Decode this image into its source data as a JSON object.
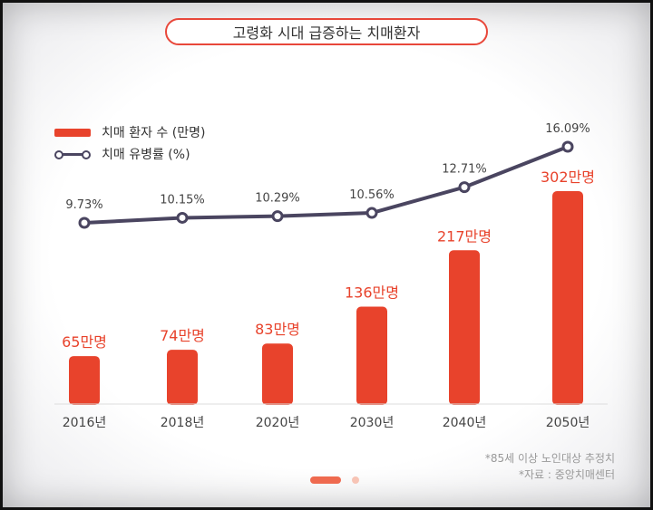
{
  "title": "고령화 시대 급증하는 치매환자",
  "legend": {
    "bar_label": "치매 환자 수 (만명)",
    "line_label": "치매 유병률 (%)"
  },
  "notes": {
    "line1": "*85세 이상 노인대상 추정치",
    "line2": "*자료 : 중앙치매센터"
  },
  "colors": {
    "bar": "#e8432c",
    "line": "#4a4560",
    "accent": "#e8473a"
  },
  "chart_data": {
    "type": "bar",
    "categories": [
      "2016년",
      "2018년",
      "2020년",
      "2030년",
      "2040년",
      "2050년"
    ],
    "series": [
      {
        "name": "치매 환자 수 (만명)",
        "type": "bar",
        "values": [
          65,
          74,
          83,
          136,
          217,
          302
        ],
        "labels": [
          "65만명",
          "74만명",
          "83만명",
          "136만명",
          "217만명",
          "302만명"
        ]
      },
      {
        "name": "치매 유병률 (%)",
        "type": "line",
        "values": [
          9.73,
          10.15,
          10.29,
          10.56,
          12.71,
          16.09
        ],
        "labels": [
          "9.73%",
          "10.15%",
          "10.29%",
          "10.56%",
          "12.71%",
          "16.09%"
        ]
      }
    ],
    "title": "고령화 시대 급증하는 치매환자",
    "legend_position": "top-left",
    "grid": false
  }
}
